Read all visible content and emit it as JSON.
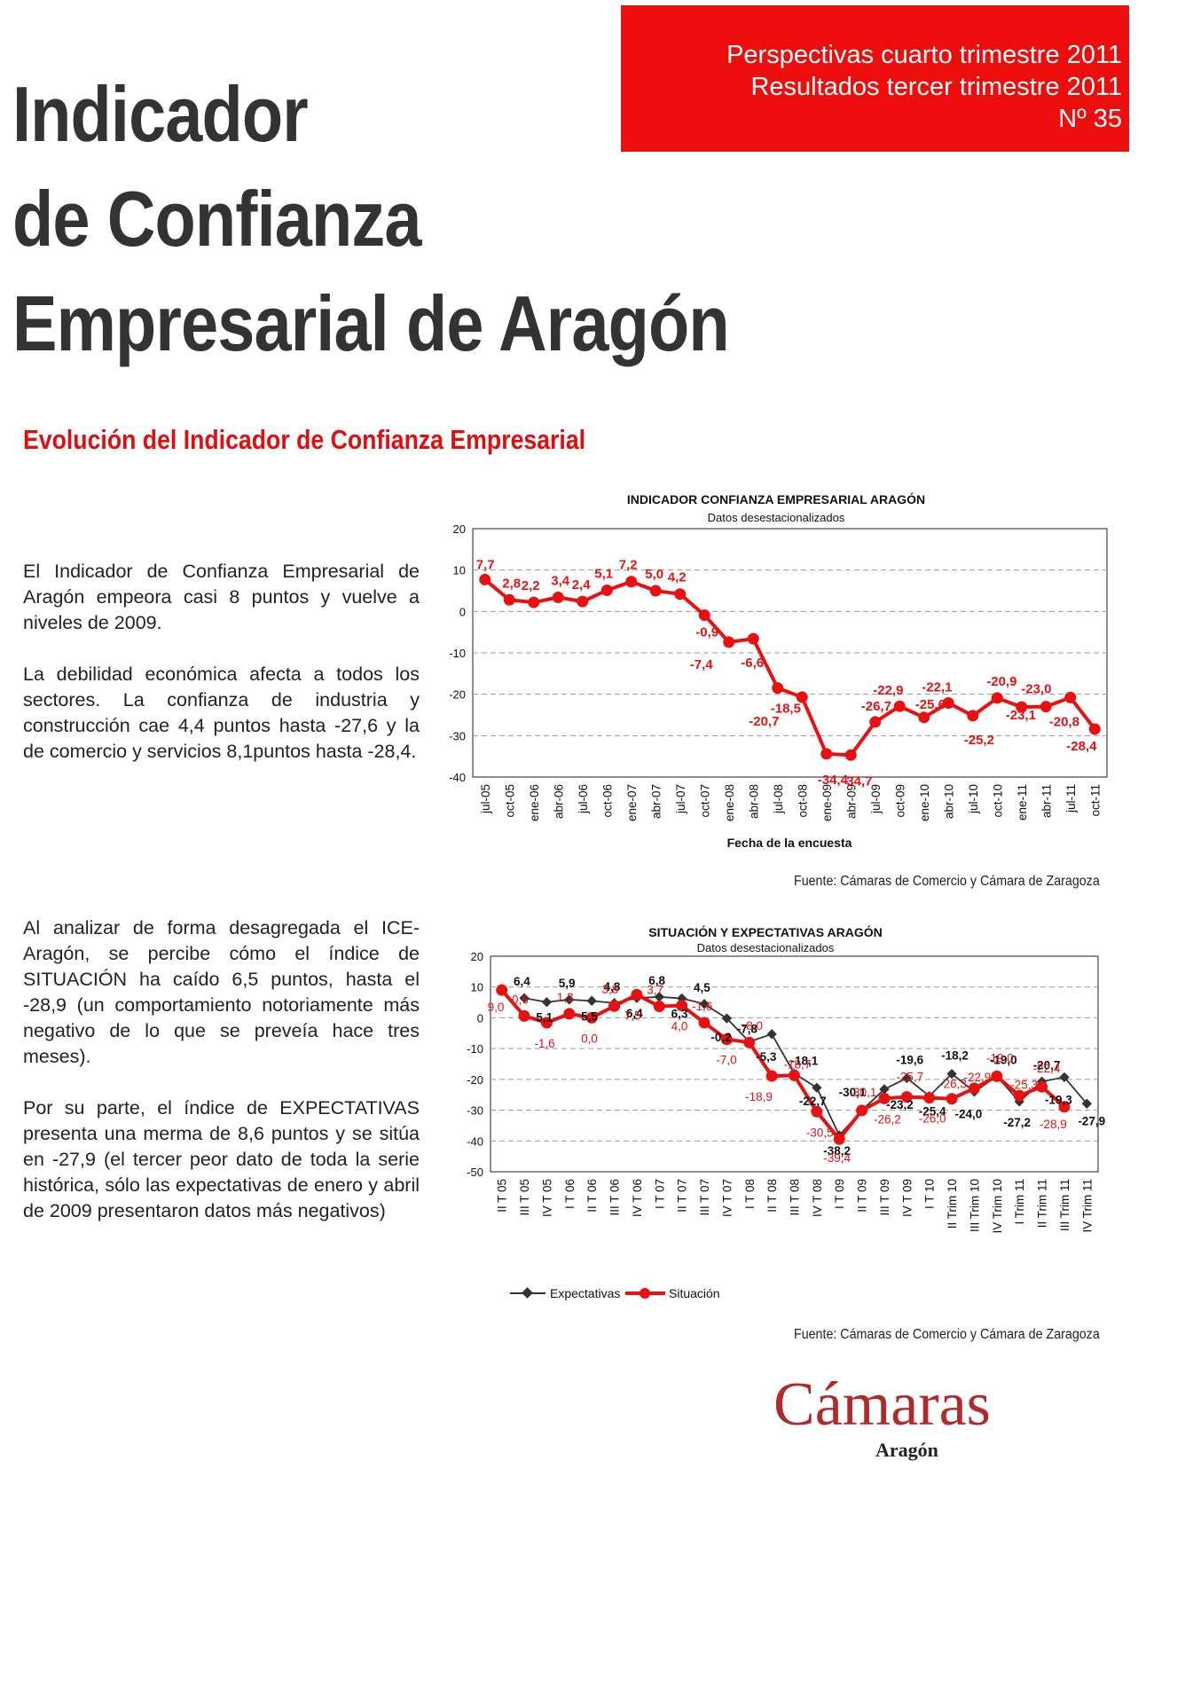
{
  "header": {
    "line1": "Perspectivas cuarto trimestre 2011",
    "line2": "Resultados tercer trimestre 2011",
    "line3": "Nº 35"
  },
  "title": {
    "line1": "Indicador",
    "line2": "de Confianza",
    "line3": "Empresarial de Aragón"
  },
  "section_title": "Evolución del Indicador de Confianza Empresarial",
  "paragraphs": {
    "p1": "El Indicador de Confianza Empresarial de Aragón empeora casi 8 puntos y vuelve a niveles de 2009.",
    "p2": "La debilidad económica afecta a todos los sectores. La confianza de industria y construcción cae 4,4 puntos hasta -27,6 y la de comercio y servicios 8,1puntos hasta -28,4.",
    "p3": "Al analizar de forma desagregada el ICE-Aragón, se percibe cómo el índice de SITUACIÓN ha caído 6,5 puntos, hasta el -28,9 (un comportamiento notoriamente más negativo de lo que se preveía hace tres meses).",
    "p4": "Por su parte, el índice de EXPECTATIVAS presenta una merma de 8,6 puntos y se sitúa en -27,9 (el tercer peor dato de toda la serie histórica, sólo las expectativas de enero y abril de 2009 presentaron datos más negativos)"
  },
  "sources": {
    "s1": "Fuente: Cámaras de Comercio y Cámara de Zaragoza",
    "s2": "Fuente: Cámaras de Comercio y Cámara de Zaragoza"
  },
  "logo": {
    "brand": "Cámaras",
    "region": "Aragón"
  },
  "colors": {
    "red": "#ee0d0d",
    "line_red": "#e81010",
    "dark": "#333333"
  },
  "chart_data": [
    {
      "type": "line",
      "title": "INDICADOR CONFIANZA EMPRESARIAL ARAGÓN",
      "subtitle": "Datos desestacionalizados",
      "xlabel": "Fecha de la encuesta",
      "ylabel": "",
      "ylim": [
        -40,
        20
      ],
      "yticks": [
        20,
        10,
        0,
        -10,
        -20,
        -30,
        -40
      ],
      "grid": true,
      "categories": [
        "jul-05",
        "oct-05",
        "ene-06",
        "abr-06",
        "jul-06",
        "oct-06",
        "ene-07",
        "abr-07",
        "jul-07",
        "oct-07",
        "ene-08",
        "abr-08",
        "jul-08",
        "oct-08",
        "ene-09",
        "abr-09",
        "jul-09",
        "oct-09",
        "ene-10",
        "abr-10",
        "jul-10",
        "oct-10",
        "ene-11",
        "abr-11",
        "jul-11",
        "oct-11"
      ],
      "series": [
        {
          "values": [
            7.7,
            2.8,
            2.2,
            3.4,
            2.4,
            5.1,
            7.2,
            5.0,
            4.2,
            -0.9,
            -7.4,
            -6.6,
            -18.5,
            -20.7,
            -34.4,
            -34.7,
            -26.7,
            -22.9,
            -25.6,
            -22.1,
            -25.2,
            -20.9,
            -23.1,
            -23.0,
            -20.8,
            -28.4
          ]
        }
      ],
      "labels": [
        "7,7",
        "2,8",
        "2,2",
        "3,4",
        "2,4",
        "5,1",
        "7,2",
        "5,0",
        "4,2",
        "-0,9",
        "-7,4",
        "-6,6",
        "-18,5",
        "-20,7",
        "-34,4",
        "-34,7",
        "-26,7",
        "-22,9",
        "-25,6",
        "-22,1",
        "-25,2",
        "-20,9",
        "-23,1",
        "-23,0",
        "-20,8",
        "-28,4"
      ]
    },
    {
      "type": "line",
      "title": "SITUACIÓN Y EXPECTATIVAS ARAGÓN",
      "subtitle": "Datos desestacionalizados",
      "xlabel": "",
      "ylabel": "",
      "ylim": [
        -50,
        20
      ],
      "yticks": [
        20,
        10,
        0,
        -10,
        -20,
        -30,
        -40,
        -50
      ],
      "grid": true,
      "legend": "bottom",
      "categories": [
        "II T 05",
        "III T 05",
        "IV T 05",
        "I T 06",
        "II T 06",
        "III T 06",
        "IV T 06",
        "I T 07",
        "II T 07",
        "III T 07",
        "IV T 07",
        "I T 08",
        "II T 08",
        "III T 08",
        "IV T 08",
        "I T 09",
        "II T 09",
        "III T 09",
        "IV T 09",
        "I T 10",
        "II Trim 10",
        "III Trim 10",
        "IV Trim 10",
        "I Trim 11",
        "II Trim 11",
        "III Trim 11",
        "IV Trim 11"
      ],
      "series": [
        {
          "name": "Expectativas",
          "values": [
            null,
            6.4,
            5.1,
            5.9,
            5.5,
            4.8,
            6.4,
            6.8,
            6.3,
            4.5,
            -0.2,
            -7.8,
            -5.3,
            -18.1,
            -22.7,
            -38.2,
            -30.1,
            -23.2,
            -19.6,
            -25.4,
            -18.2,
            -24.0,
            -19.0,
            -27.2,
            -20.7,
            -19.3,
            -27.9
          ],
          "labels": [
            "",
            "6,4",
            "5,1",
            "5,9",
            "5,5",
            "4,8",
            "6,4",
            "6,8",
            "6,3",
            "4,5",
            "-0,2",
            "-7,8",
            "-5,3",
            "-18,1",
            "-22,7",
            "-38,2",
            "-30,1",
            "-23,2",
            "-19,6",
            "-25,4",
            "-18,2",
            "-24,0",
            "-19,0",
            "-27,2",
            "-20,7",
            "-19,3",
            "-27,9"
          ]
        },
        {
          "name": "Situación",
          "values": [
            9.0,
            0.6,
            -1.6,
            1.3,
            0.0,
            3.8,
            7.5,
            3.7,
            4.0,
            -1.6,
            -7.0,
            -8.0,
            -18.9,
            -18.7,
            -30.5,
            -39.4,
            -30.1,
            -26.2,
            -25.7,
            -26.0,
            -26.3,
            -22.9,
            -19.0,
            -25.3,
            -22.4,
            -28.9,
            null
          ],
          "labels": [
            "9,0",
            "0,6",
            "-1,6",
            "1,3",
            "0,0",
            "3,8",
            "7,5",
            "3,7",
            "4,0",
            "-1,6",
            "-7,0",
            "-8,0",
            "-18,9",
            "-18,7",
            "-30,5",
            "-39,4",
            "-30,1",
            "-26,2",
            "-25,7",
            "-26,0",
            "-26,3",
            "-22,9",
            "-19,0",
            "-25,3",
            "-22,4",
            "-28,9",
            ""
          ]
        }
      ]
    }
  ]
}
